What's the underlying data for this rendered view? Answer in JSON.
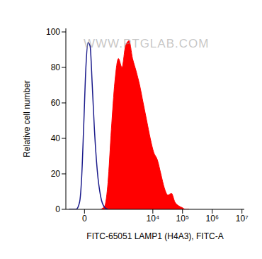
{
  "chart_data": {
    "type": "area",
    "annotation": "WWW.PTGLAB.COM",
    "x_label": "FITC-65051 LAMP1 (H4A3), FITC-A",
    "y_label": "Relative cell number",
    "x": [
      -152,
      -107,
      -70,
      -39,
      -22,
      -5.5,
      11,
      28,
      45,
      64,
      85,
      116,
      162,
      231,
      301,
      395,
      523,
      690,
      912,
      1200,
      1580,
      2080,
      2730,
      3600,
      4730,
      6220,
      8190,
      10760,
      14150,
      18600,
      24470,
      32200,
      42350,
      55700,
      73250,
      96300,
      126700,
      166600
    ],
    "series": [
      {
        "type": "line",
        "color": "#1c1c8c",
        "values": [
          0,
          0,
          0,
          4,
          18,
          48,
          80,
          94,
          92,
          70,
          45,
          22,
          7,
          1,
          0,
          null,
          null,
          null,
          null,
          null,
          null,
          null,
          null,
          null,
          null,
          null,
          null,
          null,
          null,
          null,
          null,
          null,
          null,
          null,
          null,
          null,
          null,
          null
        ]
      },
      {
        "type": "area",
        "color": "#ff0000",
        "values": [
          null,
          null,
          null,
          null,
          null,
          null,
          null,
          null,
          null,
          null,
          null,
          null,
          0,
          2,
          15,
          45,
          72,
          85,
          80,
          92,
          95,
          85,
          78,
          70,
          60,
          50,
          40,
          32,
          28,
          20,
          12,
          8,
          9,
          4,
          2,
          1,
          0,
          0
        ]
      }
    ],
    "xlim": [
      -200,
      12000000
    ],
    "xticks": [
      0,
      {
        "value": 10000,
        "label": "10⁴"
      },
      {
        "value": 100000,
        "label": "10⁵"
      },
      {
        "value": 1000000,
        "label": "10⁶"
      },
      {
        "value": 10000000,
        "label": "10⁷"
      }
    ],
    "ylim": [
      0,
      102
    ],
    "yticks": [
      0,
      20,
      40,
      60,
      80,
      100
    ],
    "grid": false
  }
}
